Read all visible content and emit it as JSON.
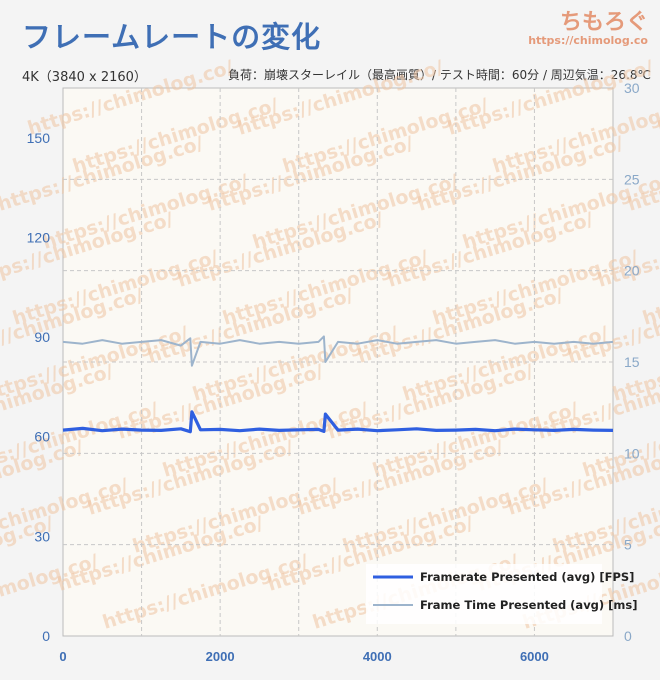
{
  "header": {
    "title": "フレームレートの変化",
    "brand_name": "ちもろぐ",
    "brand_url": "https://chimolog.co",
    "subtitle_left": "4K（3840 x 2160）",
    "subtitle_right": "負荷：崩壊スターレイル（最高画質）/ テスト時間：60分 / 周辺気温：26.8℃"
  },
  "watermark": "https://chimolog.co/",
  "colors": {
    "fps_series": "#2f5fe0",
    "frametime_series": "#9db4cc",
    "left_axis": "#3f6fb5",
    "right_axis": "#8aa8c8",
    "grid": "#c8c8c8"
  },
  "chart_data": {
    "type": "line",
    "title": "フレームレートの変化",
    "xlim": [
      0,
      7000
    ],
    "xticks": [
      0,
      2000,
      4000,
      6000
    ],
    "y_left": {
      "lim": [
        0,
        165
      ],
      "ticks": [
        0,
        30,
        60,
        90,
        120,
        150
      ]
    },
    "y_right": {
      "lim": [
        0,
        30
      ],
      "ticks": [
        0,
        5,
        10,
        15,
        20,
        25,
        30
      ]
    },
    "grid": true,
    "legend_position": "bottom-right",
    "series": [
      {
        "name": "Framerate Presented (avg) [FPS]",
        "axis": "left",
        "x": [
          0,
          250,
          500,
          750,
          1000,
          1250,
          1500,
          1620,
          1640,
          1750,
          2000,
          2250,
          2500,
          2750,
          3000,
          3250,
          3320,
          3340,
          3500,
          3750,
          4000,
          4250,
          4500,
          4750,
          5000,
          5250,
          5500,
          5750,
          6000,
          6250,
          6500,
          6750,
          7000
        ],
        "values": [
          62,
          62.5,
          61.8,
          62.3,
          62,
          61.9,
          62.4,
          61.5,
          67.5,
          62.1,
          62.2,
          61.8,
          62.3,
          61.9,
          62.1,
          62.2,
          61.6,
          66.8,
          62,
          62.3,
          61.8,
          62.1,
          62.4,
          61.9,
          62,
          62.2,
          61.8,
          62.3,
          62.1,
          61.9,
          62.2,
          62,
          61.9
        ]
      },
      {
        "name": "Frame Time Presented (avg) [ms]",
        "axis": "right",
        "x": [
          0,
          250,
          500,
          750,
          1000,
          1250,
          1500,
          1620,
          1640,
          1750,
          2000,
          2250,
          2500,
          2750,
          3000,
          3250,
          3320,
          3340,
          3500,
          3750,
          4000,
          4250,
          4500,
          4750,
          5000,
          5250,
          5500,
          5750,
          6000,
          6250,
          6500,
          6750,
          7000
        ],
        "values": [
          16.1,
          16.0,
          16.2,
          16.0,
          16.1,
          16.2,
          15.9,
          16.3,
          14.8,
          16.1,
          16.0,
          16.2,
          16.0,
          16.1,
          16.0,
          16.1,
          16.4,
          15.0,
          16.1,
          16.0,
          16.2,
          16.0,
          16.1,
          16.2,
          16.0,
          16.1,
          16.2,
          16.0,
          16.1,
          16.0,
          16.1,
          16.0,
          16.1
        ]
      }
    ]
  }
}
